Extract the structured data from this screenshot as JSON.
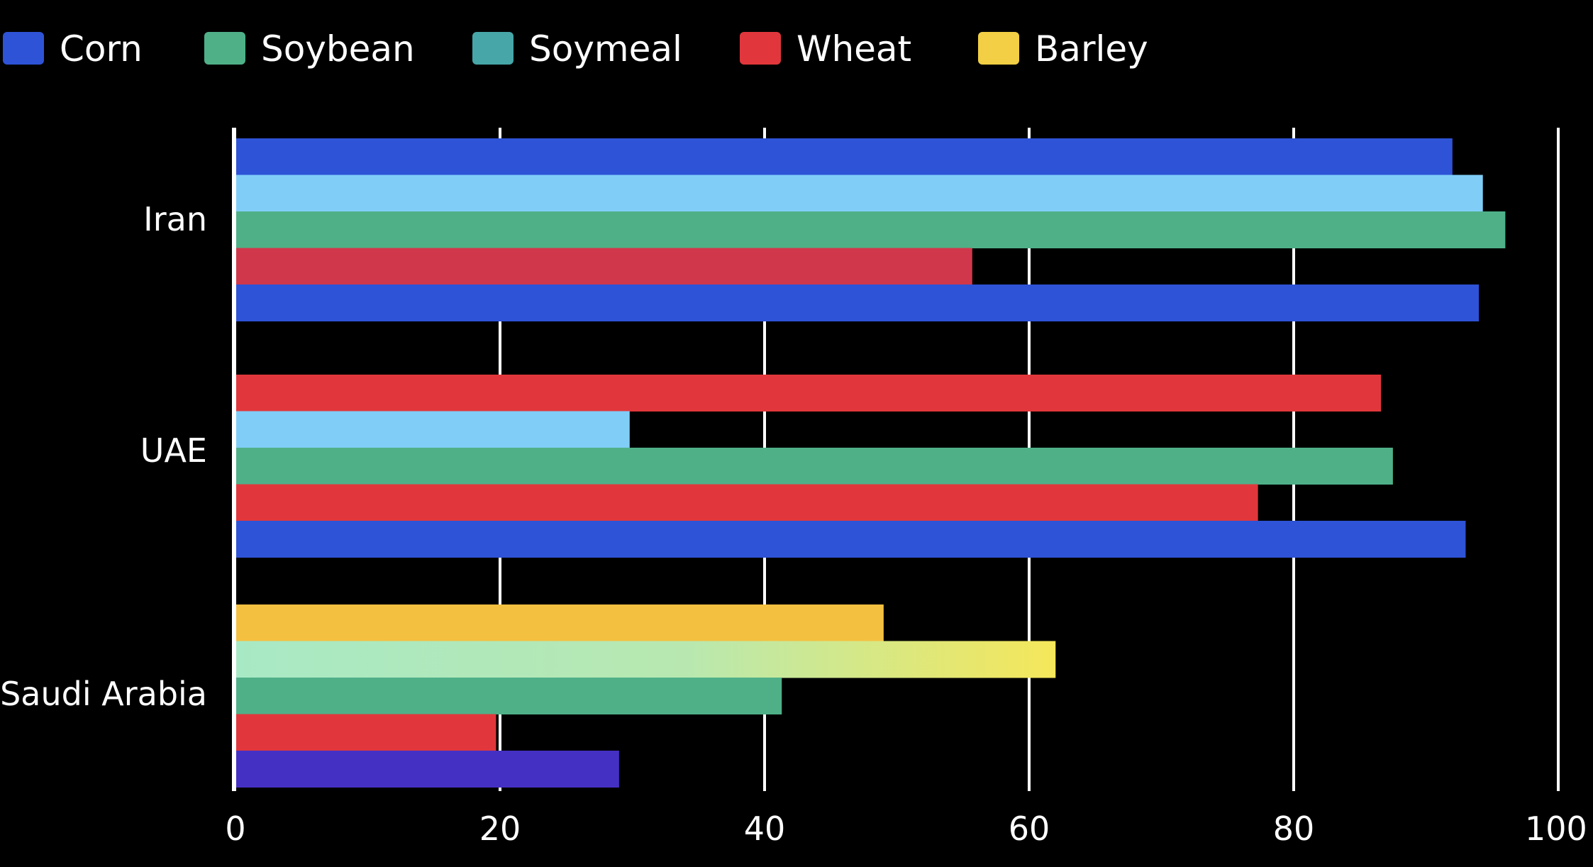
{
  "chart_data": {
    "type": "bar",
    "orientation": "horizontal",
    "title": "",
    "xlabel": "",
    "ylabel": "",
    "xlim": [
      0,
      100
    ],
    "x_ticks": [
      "0",
      "20",
      "40",
      "60",
      "80",
      "100"
    ],
    "grid": true,
    "legend_position": "top-left",
    "legend": [
      {
        "name": "Corn",
        "color": "#2e53d6"
      },
      {
        "name": "Soybean",
        "color": "#4fb088"
      },
      {
        "name": "Soymeal",
        "color": "#46a6a8"
      },
      {
        "name": "Wheat",
        "color": "#e1373c"
      },
      {
        "name": "Barley",
        "color": "#f2cf44"
      }
    ],
    "categories": [
      {
        "name": "Iran",
        "bars": [
          {
            "value": 92,
            "color": "#2e53d6"
          },
          {
            "value": 94.3,
            "color": "#80cef8"
          },
          {
            "value": 96,
            "color": "#4fb088"
          },
          {
            "value": 55.7,
            "color": "#d1374b"
          },
          {
            "value": 94,
            "color": "#2e53d6"
          }
        ]
      },
      {
        "name": "UAE",
        "bars": [
          {
            "value": 86.6,
            "color": "#e1373c"
          },
          {
            "value": 29.8,
            "color": "#80cef8"
          },
          {
            "value": 87.5,
            "color": "#4fb088"
          },
          {
            "value": 77.3,
            "color": "#e1373c"
          },
          {
            "value": 93,
            "color": "#2e53d6"
          }
        ]
      },
      {
        "name": "Saudi Arabia",
        "bars": [
          {
            "value": 49,
            "color": "#f4c040"
          },
          {
            "value": 62,
            "color": "#a8e9c5",
            "color_end": "#f5e75a"
          },
          {
            "value": 41.3,
            "color": "#4fb088"
          },
          {
            "value": 19.7,
            "color": "#e1373c"
          },
          {
            "value": 29,
            "color": "#4530c4"
          }
        ]
      }
    ]
  }
}
